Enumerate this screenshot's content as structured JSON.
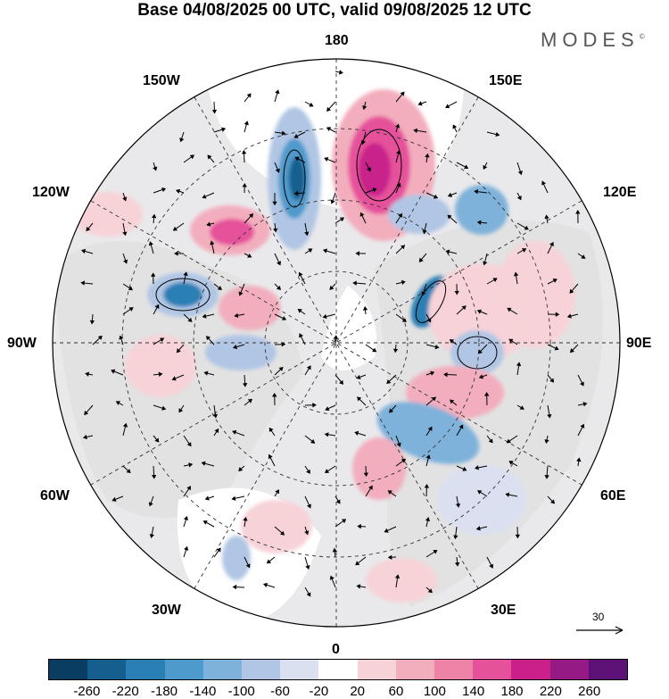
{
  "title": "Base 04/08/2025 00 UTC, valid 09/08/2025 12 UTC",
  "brand": "MODES",
  "brand_mark": "©",
  "longitude_labels": {
    "top": "180",
    "bottom": "0",
    "left": "90W",
    "right": "90E",
    "tl1": "150W",
    "tl2": "120W",
    "tr1": "150E",
    "tr2": "120E",
    "bl1": "60W",
    "bl2": "30W",
    "br1": "60E",
    "br2": "30E"
  },
  "vector_reference": {
    "label": "30",
    "icon": "arrow-right-icon"
  },
  "colorbar": {
    "colors": [
      "#0a3d62",
      "#155f8f",
      "#2a7fb5",
      "#4f9acc",
      "#7fb2da",
      "#b0c6e4",
      "#dbe0f0",
      "#ffffff",
      "#f7d3d8",
      "#f3aebd",
      "#ee83a8",
      "#e6519b",
      "#c9208a",
      "#961a86",
      "#5e1278"
    ],
    "ticks": [
      "-260",
      "-220",
      "-180",
      "-140",
      "-100",
      "-60",
      "-20",
      "20",
      "60",
      "100",
      "140",
      "180",
      "220",
      "260"
    ]
  }
}
